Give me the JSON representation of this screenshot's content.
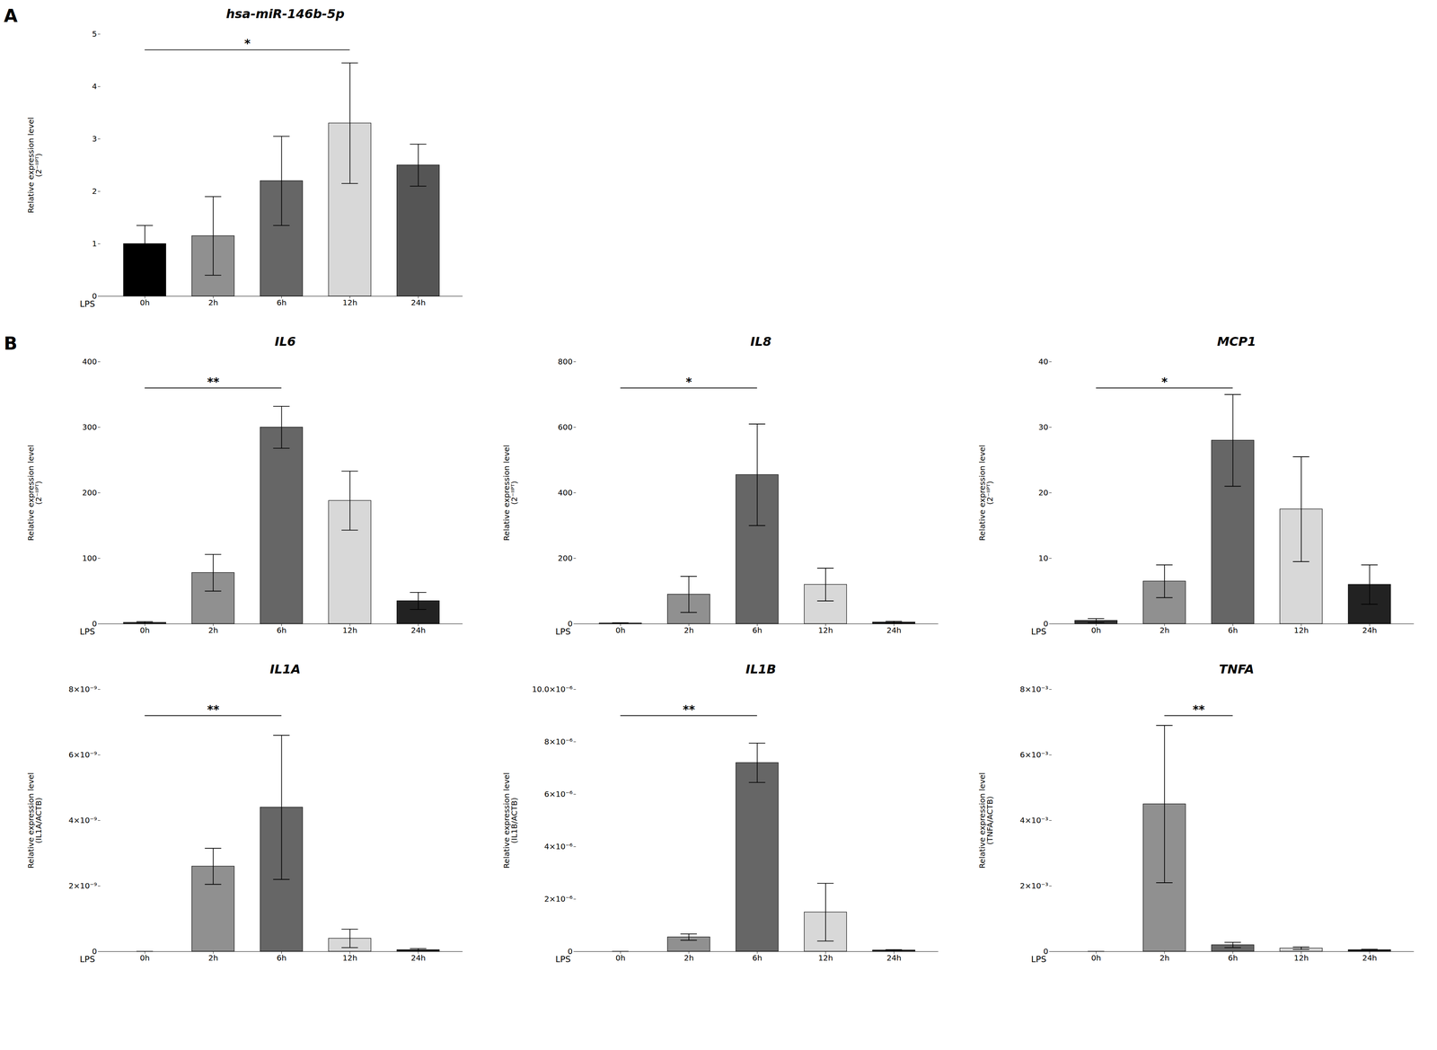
{
  "chart_data": [
    {
      "type": "bar",
      "title": "hsa-miR-146b-5p",
      "ylabel": "Relative expression level\n(2⁻ᴵᴵᴾᵀ)",
      "categories": [
        "0h",
        "2h",
        "6h",
        "12h",
        "24h"
      ],
      "values": [
        1.0,
        1.15,
        2.2,
        3.3,
        2.5
      ],
      "errors": [
        0.35,
        0.75,
        0.85,
        1.15,
        0.4
      ],
      "colors": [
        "#000000",
        "#909090",
        "#666666",
        "#d8d8d8",
        "#555555"
      ],
      "ylim": [
        0,
        5
      ],
      "yticks": [
        0,
        1,
        2,
        3,
        4,
        5
      ],
      "grid": false,
      "annotations": [
        {
          "text": "*",
          "x1": "0h",
          "x2": "12h",
          "y": 4.7
        },
        {
          "text": "LPS",
          "axis": "x"
        },
        {
          "text": "A"
        }
      ]
    },
    {
      "type": "bar",
      "title": "IL6",
      "ylabel": "Relative expression level\n(2⁻ᴵᴵᴾᵀ)",
      "categories": [
        "0h",
        "2h",
        "6h",
        "12h",
        "24h"
      ],
      "values": [
        2.0,
        78.0,
        300.0,
        188.0,
        35.0
      ],
      "errors": [
        1.5,
        28.0,
        32.0,
        45.0,
        13.0
      ],
      "colors": [
        "#333333",
        "#909090",
        "#666666",
        "#d8d8d8",
        "#222222"
      ],
      "ylim": [
        0,
        400
      ],
      "yticks": [
        0,
        100,
        200,
        300,
        400
      ],
      "grid": false,
      "annotations": [
        {
          "text": "**",
          "x1": "0h",
          "x2": "6h",
          "y": 360
        },
        {
          "text": "LPS",
          "axis": "x"
        },
        {
          "text": "B"
        }
      ]
    },
    {
      "type": "bar",
      "title": "IL8",
      "ylabel": "Relative expression level\n(2⁻ᴵᴵᴾᵀ)",
      "categories": [
        "0h",
        "2h",
        "6h",
        "12h",
        "24h"
      ],
      "values": [
        2.0,
        90.0,
        455.0,
        120.0,
        5.0
      ],
      "errors": [
        1.5,
        55.0,
        155.0,
        50.0,
        3.0
      ],
      "colors": [
        "#333333",
        "#909090",
        "#666666",
        "#d8d8d8",
        "#222222"
      ],
      "ylim": [
        0,
        800
      ],
      "yticks": [
        0,
        200,
        400,
        600,
        800
      ],
      "grid": false,
      "annotations": [
        {
          "text": "*",
          "x1": "0h",
          "x2": "6h",
          "y": 720
        },
        {
          "text": "LPS",
          "axis": "x"
        }
      ]
    },
    {
      "type": "bar",
      "title": "MCP1",
      "ylabel": "Relative expression level\n(2⁻ᴵᴵᴾᵀ)",
      "categories": [
        "0h",
        "2h",
        "6h",
        "12h",
        "24h"
      ],
      "values": [
        0.5,
        6.5,
        28.0,
        17.5,
        6.0
      ],
      "errors": [
        0.3,
        2.5,
        7.0,
        8.0,
        3.0
      ],
      "colors": [
        "#333333",
        "#909090",
        "#666666",
        "#d8d8d8",
        "#222222"
      ],
      "ylim": [
        0,
        40
      ],
      "yticks": [
        0,
        10,
        20,
        30,
        40
      ],
      "grid": false,
      "annotations": [
        {
          "text": "*",
          "x1": "0h",
          "x2": "6h",
          "y": 36
        },
        {
          "text": "LPS",
          "axis": "x"
        }
      ]
    },
    {
      "type": "bar",
      "title": "IL1A",
      "ylabel": "Relative expression level\n(IL1A/ACTB)",
      "categories": [
        "0h",
        "2h",
        "6h",
        "12h",
        "24h"
      ],
      "values": [
        0.0,
        2.6e-09,
        4.4e-09,
        4e-10,
        5e-11
      ],
      "errors": [
        0.0,
        5.5e-10,
        2.2e-09,
        2.8e-10,
        4e-11
      ],
      "colors": [
        "#333333",
        "#909090",
        "#666666",
        "#d8d8d8",
        "#222222"
      ],
      "ylim": [
        0,
        8e-09
      ],
      "yticks": [
        0,
        {
          "value": 2e-09,
          "label": "2×10⁻⁹"
        },
        {
          "value": 4e-09,
          "label": "4×10⁻⁹"
        },
        {
          "value": 6e-09,
          "label": "6×10⁻⁹"
        },
        {
          "value": 8e-09,
          "label": "8×10⁻⁹"
        }
      ],
      "grid": false,
      "annotations": [
        {
          "text": "**",
          "x1": "0h",
          "x2": "6h",
          "y": 7.2e-09
        },
        {
          "text": "LPS",
          "axis": "x"
        }
      ]
    },
    {
      "type": "bar",
      "title": "IL1B",
      "ylabel": "Relative expression level\n(IL1B/ACTB)",
      "categories": [
        "0h",
        "2h",
        "6h",
        "12h",
        "24h"
      ],
      "values": [
        0.0,
        5.5e-07,
        7.2e-06,
        1.5e-06,
        5e-08
      ],
      "errors": [
        0.0,
        1.2e-07,
        7.5e-07,
        1.1e-06,
        2e-08
      ],
      "colors": [
        "#333333",
        "#909090",
        "#666666",
        "#d8d8d8",
        "#222222"
      ],
      "ylim": [
        0,
        1e-05
      ],
      "yticks": [
        0,
        {
          "value": 2e-06,
          "label": "2×10⁻⁶"
        },
        {
          "value": 4e-06,
          "label": "4×10⁻⁶"
        },
        {
          "value": 6e-06,
          "label": "6×10⁻⁶"
        },
        {
          "value": 8e-06,
          "label": "8×10⁻⁶"
        },
        {
          "value": 1e-05,
          "label": "10.0×10⁻⁶"
        }
      ],
      "grid": false,
      "annotations": [
        {
          "text": "**",
          "x1": "0h",
          "x2": "6h",
          "y": 9e-06
        },
        {
          "text": "LPS",
          "axis": "x"
        }
      ]
    },
    {
      "type": "bar",
      "title": "TNFA",
      "ylabel": "Relative expression level\n(TNFA/ACTB)",
      "categories": [
        "0h",
        "2h",
        "6h",
        "12h",
        "24h"
      ],
      "values": [
        0.0,
        0.0045,
        0.0002,
        0.0001,
        5e-05
      ],
      "errors": [
        0.0,
        0.0024,
        8e-05,
        4e-05,
        2e-05
      ],
      "colors": [
        "#333333",
        "#909090",
        "#666666",
        "#d8d8d8",
        "#222222"
      ],
      "ylim": [
        0,
        0.008
      ],
      "yticks": [
        0,
        {
          "value": 0.002,
          "label": "2×10⁻³"
        },
        {
          "value": 0.004,
          "label": "4×10⁻³"
        },
        {
          "value": 0.006,
          "label": "6×10⁻³"
        },
        {
          "value": 0.008,
          "label": "8×10⁻³"
        }
      ],
      "grid": false,
      "annotations": [
        {
          "text": "**",
          "x1": "2h",
          "x2": "6h",
          "y": 0.0072
        },
        {
          "text": "LPS",
          "axis": "x"
        }
      ]
    }
  ]
}
